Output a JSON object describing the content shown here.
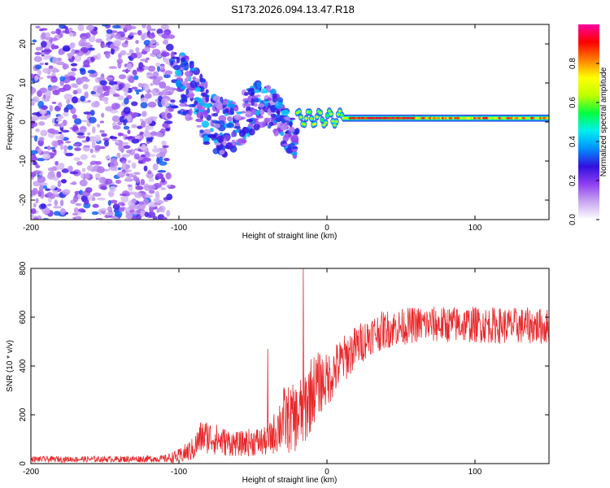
{
  "figure_title": "S173.2026.094.13.47.R18",
  "chart_data": [
    {
      "type": "heatmap",
      "name": "spectrogram",
      "xlabel": "Height of straight line (km)",
      "ylabel": "Frequency (Hz)",
      "xlim": [
        -200,
        150
      ],
      "ylim": [
        -25,
        25
      ],
      "xticks": [
        -200,
        -100,
        0,
        100
      ],
      "xtick_labels": [
        "-200",
        "-100",
        "0",
        "100"
      ],
      "yticks": [
        -20,
        -10,
        0,
        10,
        20
      ],
      "ytick_labels": [
        "-20",
        "-10",
        "0",
        "10",
        "20"
      ],
      "colorbar": {
        "label": "Normalized spectral amplitude",
        "range": [
          0,
          1
        ],
        "ticks": [
          0.0,
          0.2,
          0.4,
          0.6,
          0.8
        ],
        "tick_labels": [
          "0.0",
          "0.2",
          "0.4",
          "0.6",
          "0.8"
        ],
        "colors": [
          "#ffffff",
          "#c9a8f0",
          "#8f3ff0",
          "#3010e0",
          "#0090ff",
          "#00f0f0",
          "#00ff40",
          "#c0ff00",
          "#ffff00",
          "#ff8000",
          "#ff0000",
          "#ff00a0"
        ]
      },
      "regions": [
        {
          "name": "noise-field",
          "x_range": [
            -200,
            -105
          ],
          "freq_range": [
            -25,
            25
          ],
          "amplitude": 0.15
        },
        {
          "name": "transition-blobs",
          "x_range": [
            -105,
            -20
          ],
          "freq_range": [
            -12,
            15
          ],
          "amplitude": 0.3
        },
        {
          "name": "carrier-line",
          "x_range": [
            -20,
            150
          ],
          "freq": 1,
          "amplitude": 0.95
        }
      ]
    },
    {
      "type": "line",
      "name": "snr",
      "xlabel": "Height of straight line (km)",
      "ylabel": "SNR (10 * v/v)",
      "xlim": [
        -200,
        150
      ],
      "ylim": [
        0,
        800
      ],
      "xticks": [
        -200,
        -100,
        0,
        100
      ],
      "xtick_labels": [
        "-200",
        "-100",
        "0",
        "100"
      ],
      "yticks": [
        0,
        200,
        400,
        600,
        800
      ],
      "ytick_labels": [
        "0",
        "200",
        "400",
        "600",
        "800"
      ],
      "color": "#e8282a",
      "x": [
        -200,
        -150,
        -110,
        -100,
        -90,
        -85,
        -80,
        -70,
        -60,
        -50,
        -40,
        -35,
        -30,
        -25,
        -20,
        -15,
        -10,
        -5,
        0,
        5,
        10,
        20,
        30,
        40,
        50,
        60,
        80,
        100,
        120,
        140,
        150
      ],
      "y_mid": [
        18,
        18,
        20,
        30,
        60,
        110,
        110,
        90,
        80,
        90,
        90,
        130,
        180,
        180,
        190,
        230,
        300,
        330,
        340,
        380,
        420,
        480,
        530,
        550,
        560,
        570,
        570,
        570,
        565,
        565,
        560
      ],
      "y_amp": [
        12,
        12,
        15,
        30,
        50,
        70,
        70,
        60,
        50,
        60,
        60,
        90,
        140,
        140,
        140,
        170,
        150,
        130,
        110,
        110,
        100,
        90,
        80,
        80,
        75,
        75,
        75,
        75,
        75,
        75,
        75
      ],
      "peaks": [
        {
          "x": -16,
          "y": 800
        },
        {
          "x": -40,
          "y": 470
        }
      ]
    }
  ]
}
